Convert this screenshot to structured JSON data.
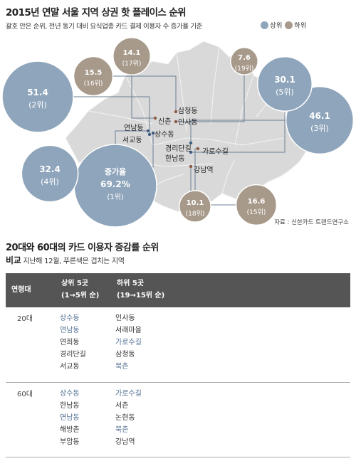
{
  "header": {
    "title": "2015년 연말 서울 지역 상권 핫 플레이스 순위",
    "subtitle": "괄호 안은 순위, 전년 동기 대비 요식업종 카드 결제 이용자 수 증가율 기준",
    "legend_top": "상위",
    "legend_bottom": "하위",
    "source": "자료 : 신한카드 트렌드연구소"
  },
  "colors": {
    "top": "#8fa5bb",
    "bottom": "#a89a8a",
    "map": "#d9d9d9",
    "text_dark": "#222222",
    "highlight": "#4f6e91",
    "table_head": "#555555"
  },
  "chart_data": {
    "type": "bubble-map",
    "title": "2015년 연말 서울 지역 상권 핫 플레이스 순위",
    "series": [
      {
        "name": "상위",
        "points": [
          {
            "place": "연남동",
            "value": 69.2,
            "rank": "(1위)",
            "value_label": "69.2%",
            "prefix": "증가율"
          },
          {
            "place": "서교동",
            "value": 51.4,
            "rank": "(2위)"
          },
          {
            "place": "경리단길",
            "value": 46.1,
            "rank": "(3위)"
          },
          {
            "place": "상수동",
            "value": 32.4,
            "rank": "(4위)"
          },
          {
            "place": "한남동",
            "value": 30.1,
            "rank": "(5위)"
          }
        ]
      },
      {
        "name": "하위",
        "points": [
          {
            "place": "신촌",
            "value": 14.1,
            "rank": "(17위)"
          },
          {
            "place": "인사동",
            "value": 7.6,
            "rank": "(19위)"
          },
          {
            "place": "삼청동",
            "value": 15.5,
            "rank": "(16위)"
          },
          {
            "place": "가로수길",
            "value": 10.1,
            "rank": "(18위)"
          },
          {
            "place": "강남역",
            "value": 16.6,
            "rank": "(15위)"
          }
        ]
      }
    ],
    "place_labels": [
      "연남동",
      "신촌",
      "서교동",
      "상수동",
      "삼청동",
      "인사동",
      "경리단길",
      "한남동",
      "가로수길",
      "강남역"
    ]
  },
  "table": {
    "title": "20대와 60대의 카드 이용자 증감률 순위",
    "sub_bold": "비교",
    "sub_text": "지난해 12월, 푸른색은 겹치는 지역",
    "head": {
      "age": "연령대",
      "top": "상위 5곳",
      "top_sub": "(1→5위 순)",
      "bottom": "하위 5곳",
      "bottom_sub": "(19→15위 순)"
    },
    "rows": [
      {
        "age": "20대",
        "top": [
          {
            "t": "상수동",
            "hl": true
          },
          {
            "t": "연남동",
            "hl": true
          },
          {
            "t": "연희동",
            "hl": false
          },
          {
            "t": "경리단길",
            "hl": false
          },
          {
            "t": "서교동",
            "hl": false
          }
        ],
        "bottom": [
          {
            "t": "인사동",
            "hl": false
          },
          {
            "t": "서래마을",
            "hl": false
          },
          {
            "t": "가로수길",
            "hl": true
          },
          {
            "t": "삼청동",
            "hl": false
          },
          {
            "t": "북촌",
            "hl": true
          }
        ]
      },
      {
        "age": "60대",
        "top": [
          {
            "t": "상수동",
            "hl": true
          },
          {
            "t": "한남동",
            "hl": false
          },
          {
            "t": "연남동",
            "hl": true
          },
          {
            "t": "해방촌",
            "hl": false
          },
          {
            "t": "부암동",
            "hl": false
          }
        ],
        "bottom": [
          {
            "t": "가로수길",
            "hl": true
          },
          {
            "t": "서촌",
            "hl": false
          },
          {
            "t": "논현동",
            "hl": false
          },
          {
            "t": "북촌",
            "hl": true
          },
          {
            "t": "강남역",
            "hl": false
          }
        ]
      }
    ]
  }
}
